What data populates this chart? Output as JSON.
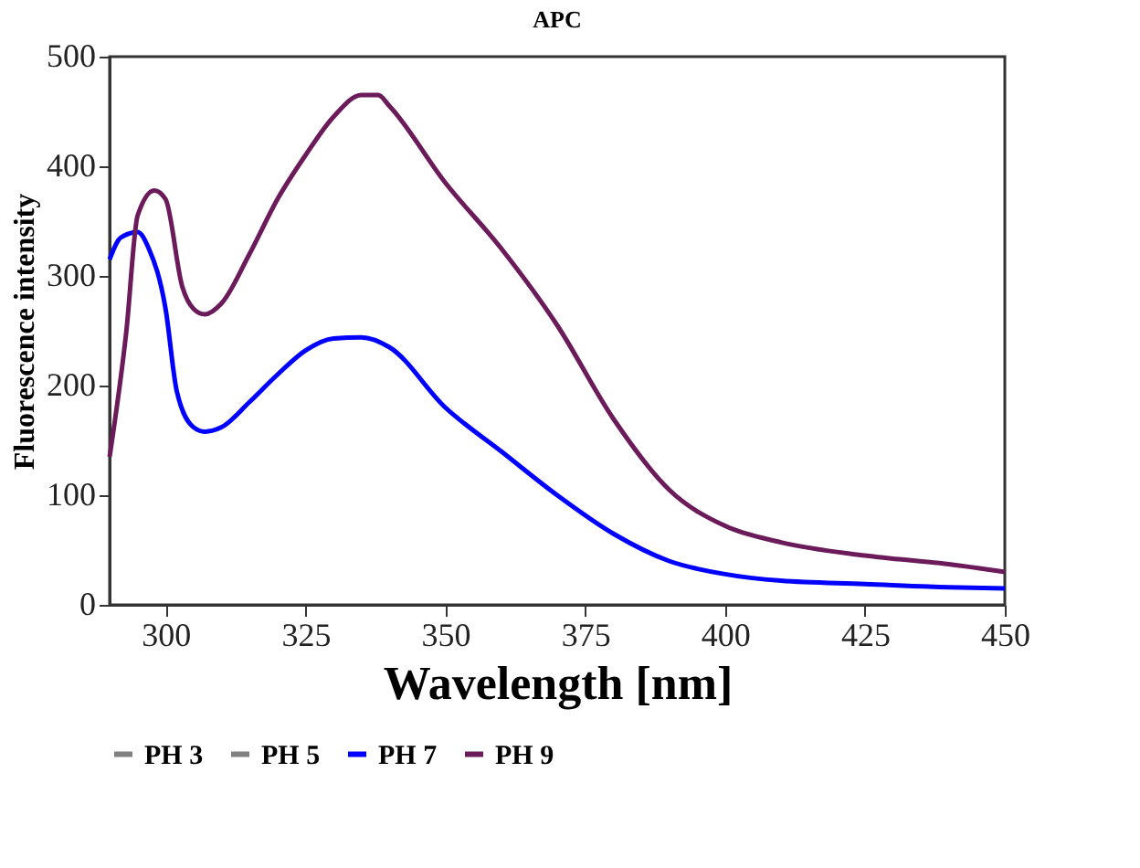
{
  "chart_data": {
    "type": "line",
    "title": "APC",
    "xlabel": "Wavelength [nm]",
    "ylabel": "Fluorescence intensity",
    "xlim": [
      290,
      450
    ],
    "xticks": [
      300,
      325,
      350,
      375,
      400,
      425,
      450
    ],
    "ylim": [
      0,
      500
    ],
    "yticks": [
      0,
      100,
      200,
      300,
      400,
      500
    ],
    "grid": false,
    "legend": "bottom",
    "marker": "none",
    "line_style": "solid",
    "series": [
      {
        "name": "PH 3",
        "color": "#808080"
      },
      {
        "name": "PH 5",
        "color": "#808080"
      },
      {
        "name": "PH 7",
        "color": "#0000ff",
        "x": [
          290,
          292,
          295,
          297,
          300,
          302,
          305,
          307,
          310,
          315,
          320,
          325,
          330,
          335,
          340,
          350,
          360,
          370,
          380,
          390,
          400,
          410,
          425,
          440,
          450
        ],
        "values": [
          315,
          335,
          340,
          325,
          270,
          195,
          162,
          158,
          162,
          185,
          210,
          232,
          243,
          244,
          235,
          180,
          140,
          100,
          65,
          40,
          28,
          22,
          19,
          16,
          15
        ]
      },
      {
        "name": "PH 9",
        "color": "#6b1a5a",
        "x": [
          290,
          293,
          295,
          298,
          300,
          303,
          305,
          307,
          310,
          315,
          320,
          325,
          330,
          335,
          338,
          340,
          350,
          360,
          370,
          380,
          390,
          400,
          410,
          425,
          440,
          450
        ],
        "values": [
          135,
          250,
          355,
          378,
          370,
          290,
          270,
          265,
          275,
          320,
          370,
          410,
          445,
          465,
          465,
          455,
          385,
          325,
          255,
          170,
          105,
          72,
          57,
          45,
          37,
          30
        ]
      }
    ]
  }
}
